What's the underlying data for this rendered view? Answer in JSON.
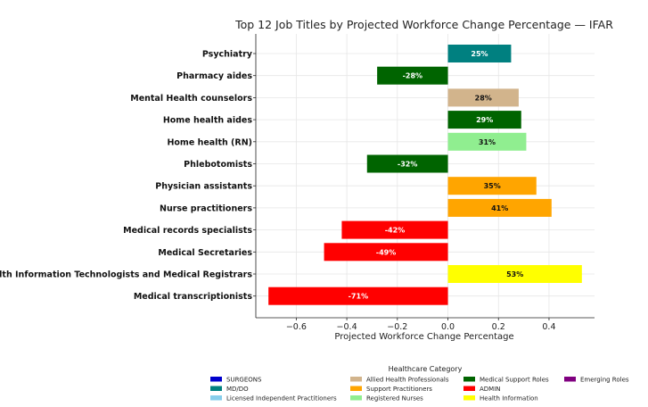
{
  "chart_data": {
    "type": "bar",
    "orientation": "horizontal",
    "title": "Top 12 Job Titles by Projected Workforce Change Percentage — IFAR",
    "xlabel": "Projected Workforce Change Percentage",
    "ylabel": "",
    "xlim": [
      -0.76,
      0.58
    ],
    "xticks": [
      -0.6,
      -0.4,
      -0.2,
      0.0,
      0.2,
      0.4
    ],
    "xtick_labels": [
      "−0.6",
      "−0.4",
      "−0.2",
      "0.0",
      "0.2",
      "0.4"
    ],
    "grid": true,
    "bars": [
      {
        "category": "Psychiatry",
        "value": 0.25,
        "label": "25%",
        "group": "MD/DO"
      },
      {
        "category": "Pharmacy aides",
        "value": -0.28,
        "label": "-28%",
        "group": "Medical Support Roles"
      },
      {
        "category": "Mental Health counselors",
        "value": 0.28,
        "label": "28%",
        "group": "Allied Health Professionals"
      },
      {
        "category": "Home health aides",
        "value": 0.29,
        "label": "29%",
        "group": "Medical Support Roles"
      },
      {
        "category": "Home health (RN)",
        "value": 0.31,
        "label": "31%",
        "group": "Registered Nurses"
      },
      {
        "category": "Phlebotomists",
        "value": -0.32,
        "label": "-32%",
        "group": "Medical Support Roles"
      },
      {
        "category": "Physician assistants",
        "value": 0.35,
        "label": "35%",
        "group": "Support Practitioners"
      },
      {
        "category": "Nurse practitioners",
        "value": 0.41,
        "label": "41%",
        "group": "Support Practitioners"
      },
      {
        "category": "Medical records specialists",
        "value": -0.42,
        "label": "-42%",
        "group": "ADMIN"
      },
      {
        "category": "Medical Secretaries",
        "value": -0.49,
        "label": "-49%",
        "group": "ADMIN"
      },
      {
        "category": "Health Information Technologists and Medical Registrars",
        "value": 0.53,
        "label": "53%",
        "group": "Health Information"
      },
      {
        "category": "Medical transcriptionists",
        "value": -0.71,
        "label": "-71%",
        "group": "ADMIN"
      }
    ],
    "legend": {
      "title": "Healthcare Category",
      "placement": "bottom",
      "entries": [
        {
          "name": "SURGEONS",
          "color": "#0000cd"
        },
        {
          "name": "MD/DO",
          "color": "#008080"
        },
        {
          "name": "Licensed Independent Practitioners",
          "color": "#87ceeb"
        },
        {
          "name": "Allied Health Professionals",
          "color": "#d2b48c"
        },
        {
          "name": "Support Practitioners",
          "color": "#ffa500"
        },
        {
          "name": "Registered Nurses",
          "color": "#90ee90"
        },
        {
          "name": "Medical Support Roles",
          "color": "#006400"
        },
        {
          "name": "ADMIN",
          "color": "#ff0000"
        },
        {
          "name": "Health Information",
          "color": "#ffff00"
        },
        {
          "name": "Emerging Roles",
          "color": "#800080"
        }
      ]
    }
  }
}
